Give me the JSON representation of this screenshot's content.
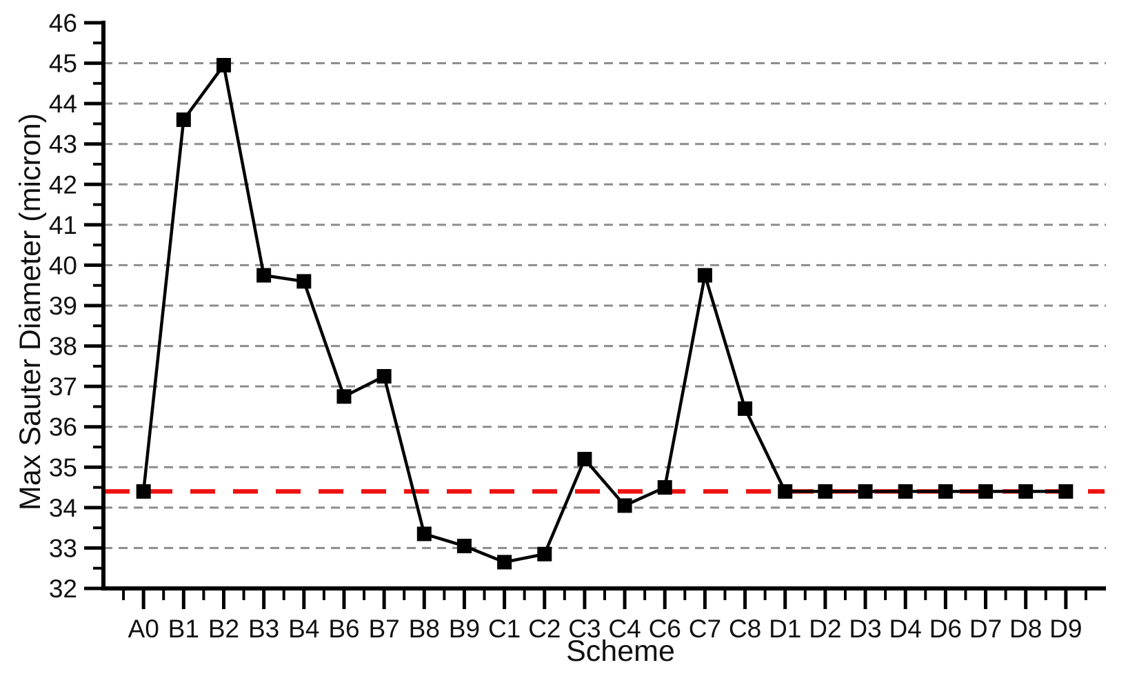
{
  "chart_data": {
    "type": "line",
    "title": "",
    "xlabel": "Scheme",
    "ylabel": "Max Sauter Diameter (micron)",
    "categories": [
      "A0",
      "B1",
      "B2",
      "B3",
      "B4",
      "B6",
      "B7",
      "B8",
      "B9",
      "C1",
      "C2",
      "C3",
      "C4",
      "C6",
      "C7",
      "C8",
      "D1",
      "D2",
      "D3",
      "D4",
      "D6",
      "D7",
      "D8",
      "D9"
    ],
    "series": [
      {
        "name": "Max Sauter Diameter",
        "marker": "filled-square",
        "color": "#000000",
        "values": [
          34.4,
          43.6,
          44.95,
          39.75,
          39.6,
          36.75,
          37.25,
          33.35,
          33.05,
          32.65,
          32.85,
          35.2,
          34.05,
          34.5,
          39.75,
          36.45,
          34.4,
          34.4,
          34.4,
          34.4,
          34.4,
          34.4,
          34.4,
          34.4
        ]
      }
    ],
    "reference_line": {
      "value": 34.4,
      "color": "#ee1111",
      "style": "dashed"
    },
    "ylim": [
      32,
      46
    ],
    "y_major_step": 1,
    "y_minor_step": 0.5,
    "y_tick_labels": [
      "32",
      "33",
      "34",
      "35",
      "36",
      "37",
      "38",
      "39",
      "40",
      "41",
      "42",
      "43",
      "44",
      "45",
      "46"
    ],
    "grid": {
      "horizontal": true,
      "style": "dashed",
      "color": "#8c8c8c",
      "value_range": [
        33,
        45
      ]
    },
    "legend": "none",
    "axis_color": "#000000",
    "background": "#ffffff"
  }
}
